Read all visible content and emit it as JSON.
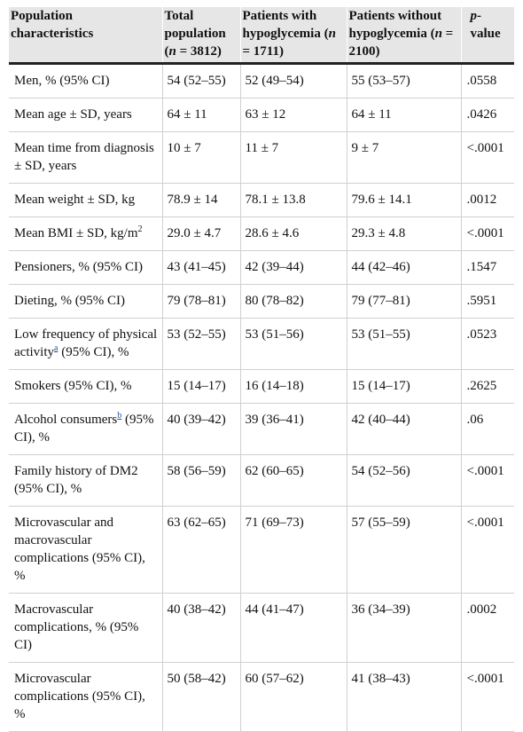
{
  "header": {
    "col1": "Population characteristics",
    "col2": {
      "pre": "Total population (",
      "n": "n",
      "post": " = 3812)"
    },
    "col3": {
      "pre": "Patients with hypoglycemia (",
      "n": "n",
      "post": " = 1711)"
    },
    "col4": {
      "pre": "Patients without hypoglycemia (",
      "n": "n",
      "post": " = 2100)"
    },
    "col5": {
      "p": "p",
      "rest": "-value"
    }
  },
  "rows": [
    {
      "label": "Men, % (95% CI)",
      "total": "54 (52–55)",
      "with": "52 (49–54)",
      "without": "55 (53–57)",
      "p": ".0558"
    },
    {
      "label": "Mean age ± SD, years",
      "total": "64 ± 11",
      "with": "63 ± 12",
      "without": "64 ± 11",
      "p": ".0426"
    },
    {
      "label": "Mean time from diagnosis ± SD, years",
      "total": "10 ± 7",
      "with": "11 ± 7",
      "without": "9 ± 7",
      "p": "<.0001"
    },
    {
      "label": "Mean weight ± SD, kg",
      "total": "78.9 ± 14",
      "with": "78.1 ± 13.8",
      "without": "79.6 ± 14.1",
      "p": ".0012"
    },
    {
      "label": "Mean BMI ± SD, kg/m",
      "sup": "2",
      "total": "29.0 ± 4.7",
      "with": "28.6 ± 4.6",
      "without": "29.3 ± 4.8",
      "p": "<.0001"
    },
    {
      "label": "Pensioners, % (95% CI)",
      "total": "43 (41–45)",
      "with": "42 (39–44)",
      "without": "44 (42–46)",
      "p": ".1547"
    },
    {
      "label": "Dieting, % (95% CI)",
      "total": "79 (78–81)",
      "with": "80 (78–82)",
      "without": "79 (77–81)",
      "p": ".5951"
    },
    {
      "label": "Low frequency of physical activity",
      "fn": "a",
      "label_after": " (95% CI), %",
      "total": "53 (52–55)",
      "with": "53 (51–56)",
      "without": "53 (51–55)",
      "p": ".0523"
    },
    {
      "label": "Smokers (95% CI), %",
      "total": "15 (14–17)",
      "with": "16 (14–18)",
      "without": "15 (14–17)",
      "p": ".2625"
    },
    {
      "label": "Alcohol consumers",
      "fn": "b",
      "label_after": " (95% CI), %",
      "total": "40 (39–42)",
      "with": "39 (36–41)",
      "without": "42 (40–44)",
      "p": ".06"
    },
    {
      "label": "Family history of DM2 (95% CI), %",
      "total": "58 (56–59)",
      "with": "62 (60–65)",
      "without": "54 (52–56)",
      "p": "<.0001"
    },
    {
      "label": "Microvascular and macrovascular complications (95% CI), %",
      "total": "63 (62–65)",
      "with": "71 (69–73)",
      "without": "57 (55–59)",
      "p": "<.0001"
    },
    {
      "label": "Macrovascular complications, % (95% CI)",
      "total": "40 (38–42)",
      "with": "44 (41–47)",
      "without": "36 (34–39)",
      "p": ".0002"
    },
    {
      "label": "Microvascular complications (95% CI), %",
      "total": "50 (58–42)",
      "with": "60 (57–62)",
      "without": "41 (38–43)",
      "p": "<.0001"
    }
  ]
}
